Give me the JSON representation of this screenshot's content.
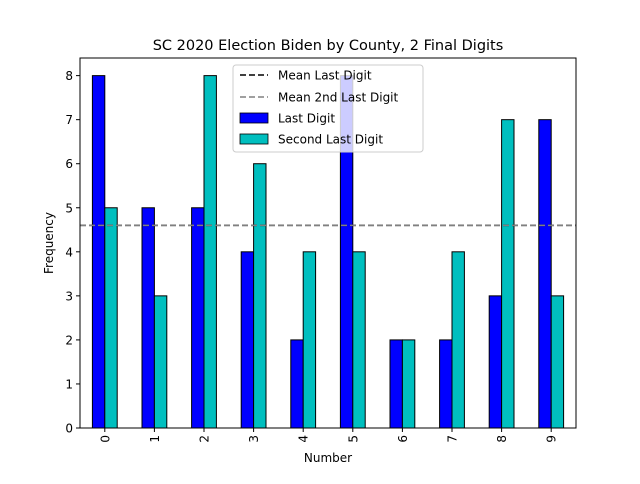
{
  "chart_data": {
    "type": "bar",
    "title": "SC 2020 Election Biden by County, 2 Final Digits",
    "xlabel": "Number",
    "ylabel": "Frequency",
    "categories": [
      "0",
      "1",
      "2",
      "3",
      "4",
      "5",
      "6",
      "7",
      "8",
      "9"
    ],
    "ylim": [
      0,
      8.4
    ],
    "yticks": [
      "0",
      "1",
      "2",
      "3",
      "4",
      "5",
      "6",
      "7",
      "8"
    ],
    "series": [
      {
        "name": "Last Digit",
        "color": "#0000ff",
        "values": [
          8,
          5,
          5,
          4,
          2,
          8,
          2,
          2,
          3,
          7
        ]
      },
      {
        "name": "Second Last Digit",
        "color": "#00bfbf",
        "values": [
          5,
          3,
          8,
          6,
          4,
          4,
          2,
          4,
          7,
          3
        ]
      }
    ],
    "reference_lines": [
      {
        "name": "Mean Last Digit",
        "value": 4.6,
        "color": "#000000",
        "style": "dashed"
      },
      {
        "name": "Mean 2nd Last Digit",
        "value": 4.6,
        "color": "#808080",
        "style": "dashed"
      }
    ],
    "legend": {
      "placement": "top-center",
      "entries": [
        "Mean Last Digit",
        "Mean 2nd Last Digit",
        "Last Digit",
        "Second Last Digit"
      ]
    },
    "grid": false
  }
}
